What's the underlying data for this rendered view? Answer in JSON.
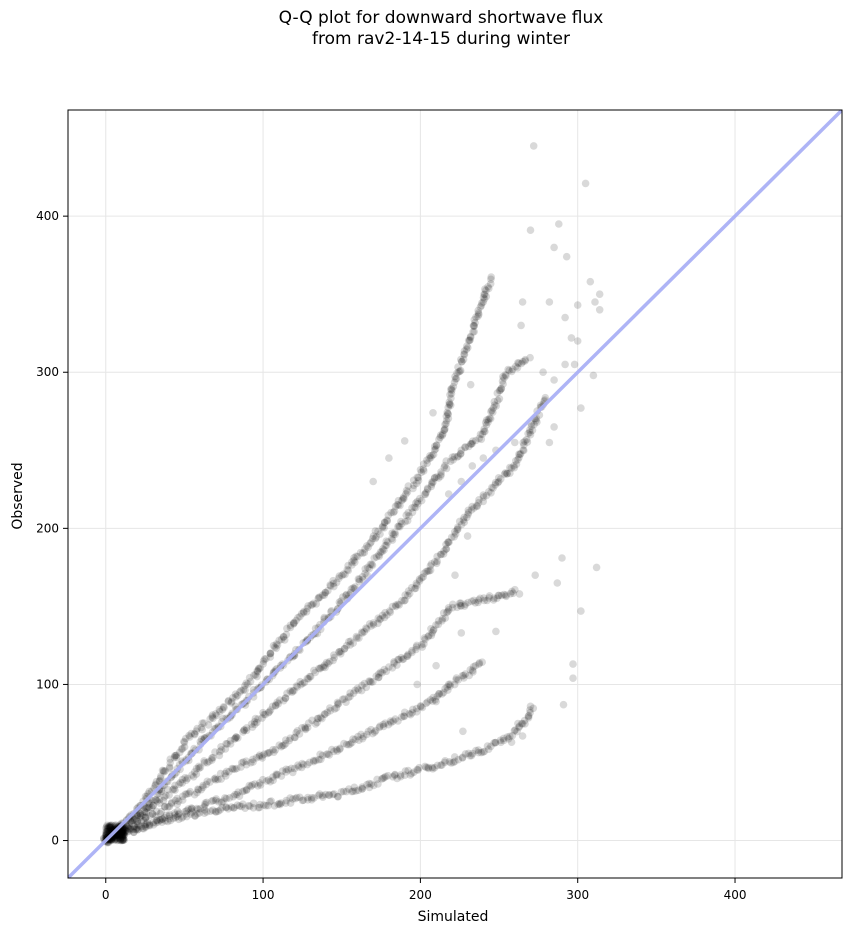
{
  "chart_data": {
    "type": "scatter",
    "title_lines": [
      "Q-Q plot for downward shortwave flux",
      "from rav2-14-15 during winter"
    ],
    "xlabel": "Simulated",
    "ylabel": "Observed",
    "xlim": [
      -24,
      468
    ],
    "ylim": [
      -24,
      468
    ],
    "xticks": [
      0,
      100,
      200,
      300,
      400
    ],
    "yticks": [
      0,
      100,
      200,
      300,
      400
    ],
    "grid": true,
    "point_color": "#000000",
    "point_opacity": 0.15,
    "reference_line": {
      "type": "y=x",
      "color": "#aab0f5"
    },
    "branches": [
      {
        "name": "upper-1",
        "points": [
          [
            0,
            0
          ],
          [
            20,
            20
          ],
          [
            50,
            62
          ],
          [
            90,
            100
          ],
          [
            120,
            140
          ],
          [
            150,
            170
          ],
          [
            175,
            200
          ],
          [
            200,
            235
          ],
          [
            215,
            262
          ],
          [
            222,
            296
          ],
          [
            245,
            360
          ]
        ]
      },
      {
        "name": "upper-2",
        "points": [
          [
            0,
            0
          ],
          [
            20,
            15
          ],
          [
            60,
            62
          ],
          [
            100,
            100
          ],
          [
            130,
            130
          ],
          [
            160,
            165
          ],
          [
            190,
            205
          ],
          [
            220,
            245
          ],
          [
            240,
            260
          ],
          [
            255,
            300
          ],
          [
            270,
            310
          ]
        ]
      },
      {
        "name": "middle-1",
        "points": [
          [
            0,
            0
          ],
          [
            30,
            22
          ],
          [
            70,
            55
          ],
          [
            100,
            80
          ],
          [
            130,
            105
          ],
          [
            160,
            130
          ],
          [
            190,
            155
          ],
          [
            215,
            185
          ],
          [
            230,
            210
          ],
          [
            260,
            240
          ],
          [
            280,
            285
          ]
        ]
      },
      {
        "name": "middle-2",
        "points": [
          [
            0,
            0
          ],
          [
            40,
            22
          ],
          [
            80,
            45
          ],
          [
            110,
            60
          ],
          [
            140,
            82
          ],
          [
            170,
            103
          ],
          [
            200,
            125
          ],
          [
            220,
            150
          ],
          [
            245,
            155
          ],
          [
            262,
            160
          ]
        ]
      },
      {
        "name": "lower-1",
        "points": [
          [
            0,
            0
          ],
          [
            40,
            15
          ],
          [
            80,
            28
          ],
          [
            110,
            42
          ],
          [
            140,
            55
          ],
          [
            170,
            70
          ],
          [
            200,
            85
          ],
          [
            220,
            100
          ],
          [
            240,
            115
          ]
        ]
      },
      {
        "name": "lower-2",
        "points": [
          [
            0,
            0
          ],
          [
            30,
            12
          ],
          [
            70,
            20
          ],
          [
            100,
            23
          ],
          [
            150,
            30
          ],
          [
            180,
            40
          ],
          [
            210,
            48
          ],
          [
            240,
            58
          ],
          [
            262,
            70
          ],
          [
            272,
            86
          ]
        ]
      }
    ],
    "scattered_points": [
      [
        272,
        445
      ],
      [
        305,
        421
      ],
      [
        288,
        395
      ],
      [
        270,
        391
      ],
      [
        293,
        374
      ],
      [
        245,
        361
      ],
      [
        308,
        358
      ],
      [
        265,
        345
      ],
      [
        300,
        343
      ],
      [
        282,
        345
      ],
      [
        285,
        380
      ],
      [
        240,
        345
      ],
      [
        314,
        350
      ],
      [
        311,
        345
      ],
      [
        296,
        322
      ],
      [
        292,
        335
      ],
      [
        298,
        305
      ],
      [
        278,
        300
      ],
      [
        285,
        295
      ],
      [
        314,
        340
      ],
      [
        310,
        298
      ],
      [
        302,
        277
      ],
      [
        285,
        265
      ],
      [
        270,
        260
      ],
      [
        260,
        255
      ],
      [
        248,
        250
      ],
      [
        240,
        245
      ],
      [
        233,
        240
      ],
      [
        226,
        230
      ],
      [
        218,
        222
      ],
      [
        208,
        274
      ],
      [
        190,
        256
      ],
      [
        180,
        245
      ],
      [
        170,
        230
      ],
      [
        230,
        195
      ],
      [
        222,
        170
      ],
      [
        225,
        152
      ],
      [
        237,
        154
      ],
      [
        250,
        157
      ],
      [
        248,
        134
      ],
      [
        226,
        133
      ],
      [
        210,
        112
      ],
      [
        218,
        100
      ],
      [
        198,
        100
      ],
      [
        210,
        89
      ],
      [
        227,
        70
      ],
      [
        262,
        75
      ],
      [
        270,
        86
      ],
      [
        258,
        63
      ],
      [
        265,
        67
      ],
      [
        290,
        181
      ],
      [
        302,
        147
      ],
      [
        291,
        87
      ],
      [
        297,
        113
      ],
      [
        297,
        104
      ],
      [
        287,
        165
      ],
      [
        273,
        170
      ],
      [
        312,
        175
      ],
      [
        263,
        158
      ],
      [
        255,
        235
      ],
      [
        243,
        268
      ],
      [
        232,
        292
      ],
      [
        264,
        330
      ],
      [
        282,
        255
      ],
      [
        292,
        305
      ],
      [
        300,
        320
      ]
    ]
  }
}
